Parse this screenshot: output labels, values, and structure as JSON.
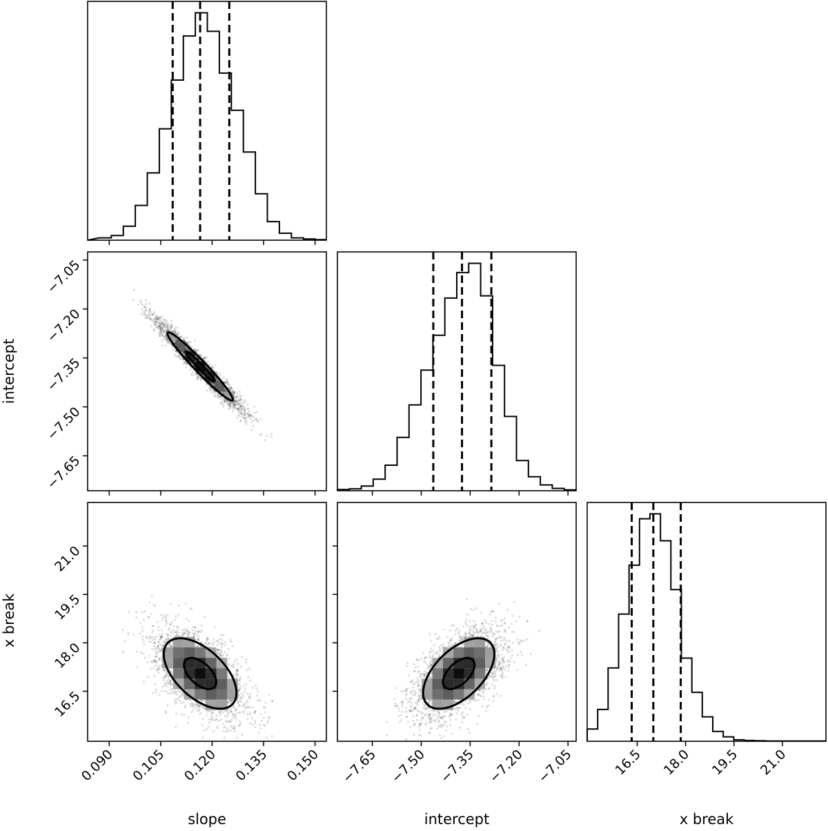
{
  "chart_data": {
    "type": "corner",
    "parameters": [
      {
        "name": "slope",
        "xlabel": "slope",
        "ylabel": "",
        "range": [
          0.0837,
          0.1533
        ],
        "ticks": [
          0.09,
          0.105,
          0.12,
          0.135,
          0.15
        ],
        "tick_labels": [
          "0.090",
          "0.105",
          "0.120",
          "0.135",
          "0.150"
        ],
        "quantiles": [
          0.1085,
          0.1165,
          0.125
        ],
        "histogram": {
          "bin_width": 0.0035,
          "bin_starts": [
            0.0871,
            0.0906,
            0.0941,
            0.0976,
            0.1011,
            0.1046,
            0.1081,
            0.1116,
            0.1151,
            0.1186,
            0.1221,
            0.1256,
            0.1291,
            0.1326,
            0.1361,
            0.1396,
            0.1431,
            0.1466,
            0.1501
          ],
          "counts": [
            1,
            2,
            6,
            15,
            29,
            48,
            69,
            88,
            98,
            90,
            72,
            56,
            38,
            20,
            8,
            3,
            1,
            0.5,
            0.2
          ]
        }
      },
      {
        "name": "intercept",
        "xlabel": "intercept",
        "ylabel": "intercept",
        "range": [
          -7.757,
          -7.025
        ],
        "ticks": [
          -7.65,
          -7.5,
          -7.35,
          -7.2,
          -7.05
        ],
        "tick_labels": [
          "−7.65",
          "−7.50",
          "−7.35",
          "−7.20",
          "−7.05"
        ],
        "quantiles": [
          -7.463,
          -7.375,
          -7.285
        ],
        "histogram": {
          "bin_width": 0.0366,
          "bin_starts": [
            -7.757,
            -7.7204,
            -7.6838,
            -7.6472,
            -7.6106,
            -7.574,
            -7.5374,
            -7.5008,
            -7.4642,
            -7.4276,
            -7.391,
            -7.3544,
            -7.3178,
            -7.2812,
            -7.2446,
            -7.208,
            -7.1714,
            -7.1348,
            -7.0982,
            -7.0616
          ],
          "counts": [
            0.5,
            0.8,
            2,
            5,
            11,
            23,
            37,
            52,
            67,
            83,
            94,
            98,
            84,
            54,
            32,
            13,
            6,
            2.5,
            1,
            0.4
          ]
        }
      },
      {
        "name": "x break",
        "xlabel": "x break",
        "ylabel": "x break",
        "range": [
          14.95,
          22.35
        ],
        "ticks": [
          16.5,
          18.0,
          19.5,
          21.0
        ],
        "tick_labels": [
          "16.5",
          "18.0",
          "19.5",
          "21.0"
        ],
        "quantiles": [
          16.33,
          17.0,
          17.85
        ],
        "histogram": {
          "bin_width": 0.3244,
          "bin_starts": [
            14.95,
            15.2744,
            15.5988,
            15.9232,
            16.2476,
            16.572,
            16.8964,
            17.2208,
            17.5452,
            17.8696,
            18.194,
            18.5184,
            18.8428,
            19.1672,
            19.4916,
            19.816,
            20.1404,
            20.4648,
            20.7892,
            21.1136,
            21.438,
            21.7624,
            22.0868
          ],
          "counts": [
            5,
            13,
            30,
            52,
            72,
            91,
            93,
            82,
            62,
            34,
            20,
            10,
            4,
            1.8,
            0.6,
            0.3,
            0.2,
            0.1,
            0.1,
            0.1,
            0.1,
            0.1,
            0.1
          ]
        }
      }
    ],
    "joint": [
      {
        "x_param": "slope",
        "y_param": "intercept",
        "center": [
          0.1165,
          -7.376
        ],
        "sd": [
          0.0063,
          0.069
        ],
        "correlation": -0.97,
        "contour_levels": [
          "inner",
          "outer"
        ]
      },
      {
        "x_param": "slope",
        "y_param": "x break",
        "center": [
          0.1165,
          17.05
        ],
        "sd": [
          0.007,
          0.72
        ],
        "correlation": -0.55,
        "contour_levels": [
          "inner",
          "outer"
        ]
      },
      {
        "x_param": "intercept",
        "y_param": "x break",
        "center": [
          -7.385,
          17.05
        ],
        "sd": [
          0.072,
          0.72
        ],
        "correlation": 0.55,
        "contour_levels": [
          "inner",
          "outer"
        ]
      }
    ],
    "grid": false,
    "legend": "none",
    "colors": {
      "line": "#000000",
      "density": "#000000",
      "background": "#ffffff"
    }
  }
}
